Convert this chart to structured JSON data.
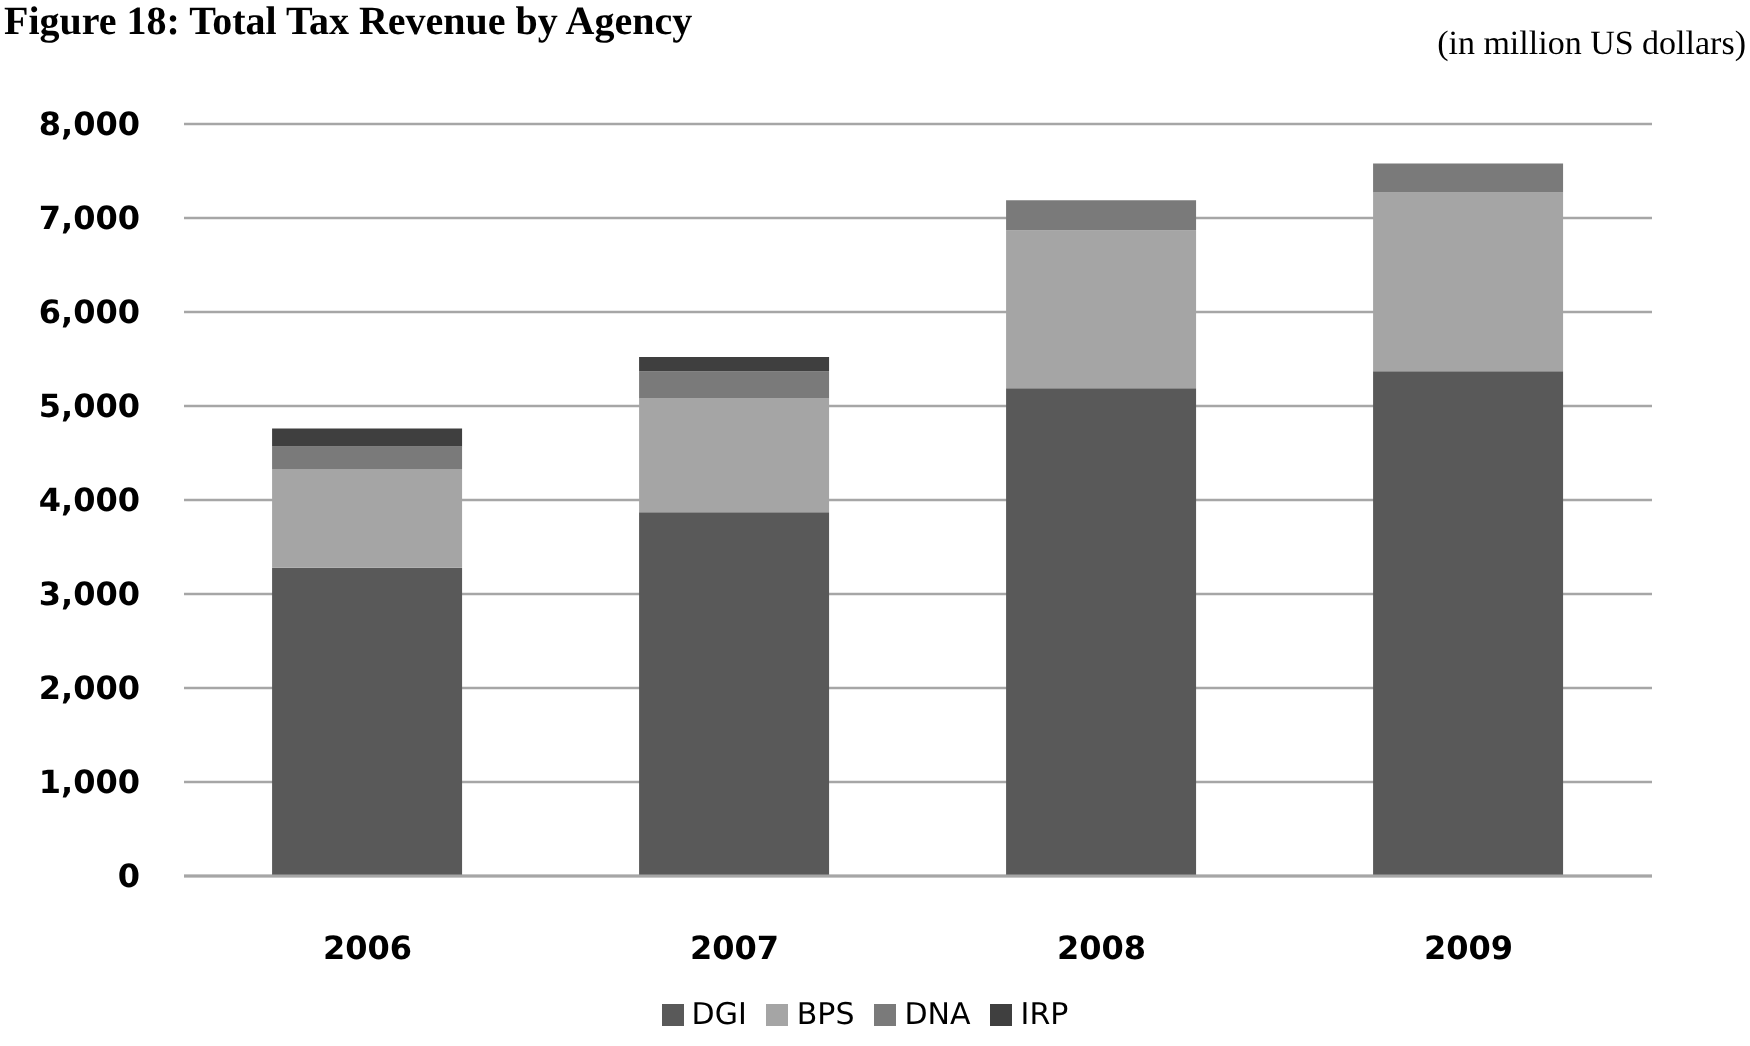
{
  "chart_data": {
    "type": "bar",
    "title": "Figure 18: Total Tax Revenue by Agency",
    "subtitle": "(in million US dollars)",
    "categories": [
      "2006",
      "2007",
      "2008",
      "2009"
    ],
    "stacked": true,
    "series": [
      {
        "name": "DGI",
        "color": "#595959",
        "values": [
          3280,
          3870,
          5190,
          5370
        ]
      },
      {
        "name": "BPS",
        "color": "#a5a5a5",
        "values": [
          1050,
          1210,
          1680,
          1900
        ]
      },
      {
        "name": "DNA",
        "color": "#7a7a7a",
        "values": [
          240,
          290,
          320,
          310
        ]
      },
      {
        "name": "IRP",
        "color": "#3f3f3f",
        "values": [
          190,
          150,
          null,
          null
        ]
      }
    ],
    "ylim": [
      0,
      8000
    ],
    "yticks": [
      {
        "value": 0,
        "label": "0"
      },
      {
        "value": 1000,
        "label": "1,000"
      },
      {
        "value": 2000,
        "label": "2,000"
      },
      {
        "value": 3000,
        "label": "3,000"
      },
      {
        "value": 4000,
        "label": "4,000"
      },
      {
        "value": 5000,
        "label": "5,000"
      },
      {
        "value": 6000,
        "label": "6,000"
      },
      {
        "value": 7000,
        "label": "7,000"
      },
      {
        "value": 8000,
        "label": "8,000"
      }
    ],
    "grid": "y",
    "legend": "bottom"
  }
}
